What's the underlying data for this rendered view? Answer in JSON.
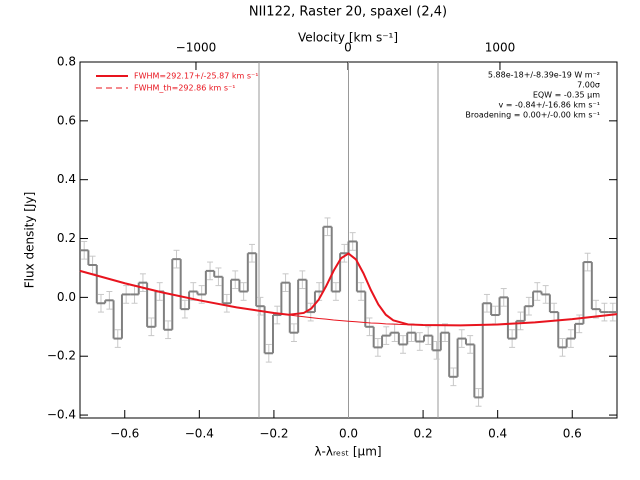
{
  "chart_data": {
    "type": "histogram",
    "title": "NII122, Raster 20, spaxel (2,4)",
    "xlabel": "λ-λᵣₑₛₜ [μm]",
    "ylabel": "Flux density [Jy]",
    "x2label": "Velocity [km s⁻¹]",
    "xlim": [
      -0.72,
      0.72
    ],
    "xticks": [
      {
        "value": -0.6,
        "label": "−0.6"
      },
      {
        "value": -0.4,
        "label": "−0.4"
      },
      {
        "value": -0.2,
        "label": "−0.2"
      },
      {
        "value": 0,
        "label": "0.0"
      },
      {
        "value": 0.2,
        "label": "0.2"
      },
      {
        "value": 0.4,
        "label": "0.4"
      },
      {
        "value": 0.6,
        "label": "0.6"
      }
    ],
    "x2lim": [
      -1763,
      1770
    ],
    "x2ticks": [
      {
        "value": -1000,
        "label": "−1000"
      },
      0,
      1000
    ],
    "ylim": [
      -0.41,
      0.8
    ],
    "yticks": [
      {
        "value": -0.4,
        "label": "−0.4"
      },
      {
        "value": -0.2,
        "label": "−0.2"
      },
      {
        "value": 0,
        "label": "0.0"
      },
      0.2,
      0.4,
      0.6,
      0.8
    ],
    "vlines": [
      -0.24,
      0,
      0.24
    ],
    "vline_color": "#999999",
    "hist_color": "#808080",
    "error_color": "#c8c8c8",
    "bins": [
      -0.72,
      -0.6975,
      -0.675,
      -0.6525,
      -0.63,
      -0.6075,
      -0.585,
      -0.5625,
      -0.54,
      -0.5175,
      -0.495,
      -0.4725,
      -0.45,
      -0.4275,
      -0.405,
      -0.3825,
      -0.36,
      -0.3375,
      -0.315,
      -0.2925,
      -0.27,
      -0.2475,
      -0.225,
      -0.2025,
      -0.18,
      -0.1575,
      -0.135,
      -0.1125,
      -0.09,
      -0.0675,
      -0.045,
      -0.0225,
      0,
      0.0225,
      0.045,
      0.0675,
      0.09,
      0.1125,
      0.135,
      0.1575,
      0.18,
      0.2025,
      0.225,
      0.2475,
      0.27,
      0.2925,
      0.315,
      0.3375,
      0.36,
      0.3825,
      0.405,
      0.4275,
      0.45,
      0.4725,
      0.495,
      0.5175,
      0.54,
      0.5625,
      0.585,
      0.6075,
      0.63,
      0.6525,
      0.675,
      0.6975,
      0.72
    ],
    "values": [
      0.16,
      0.11,
      -0.02,
      -0.01,
      -0.14,
      0.01,
      0.01,
      0.05,
      -0.1,
      0.02,
      -0.11,
      0.13,
      -0.04,
      0.02,
      0.01,
      0.09,
      0.07,
      -0.02,
      0.06,
      0.02,
      0.15,
      -0.03,
      -0.19,
      -0.06,
      0.05,
      -0.12,
      0.06,
      -0.05,
      0.02,
      0.24,
      0.02,
      0.15,
      0.19,
      0.02,
      -0.1,
      -0.17,
      -0.13,
      -0.12,
      -0.16,
      -0.12,
      -0.15,
      -0.13,
      -0.18,
      -0.12,
      -0.27,
      -0.14,
      -0.16,
      -0.34,
      -0.02,
      -0.06,
      0.0,
      -0.14,
      -0.08,
      -0.03,
      0.02,
      0.01,
      -0.05,
      -0.17,
      -0.14,
      -0.09,
      0.12,
      -0.04,
      -0.05,
      -0.05
    ],
    "errors": [
      0.03,
      0.03,
      0.03,
      0.03,
      0.03,
      0.03,
      0.03,
      0.03,
      0.03,
      0.03,
      0.03,
      0.03,
      0.03,
      0.03,
      0.03,
      0.03,
      0.03,
      0.03,
      0.03,
      0.03,
      0.03,
      0.03,
      0.03,
      0.03,
      0.03,
      0.03,
      0.03,
      0.03,
      0.03,
      0.03,
      0.03,
      0.03,
      0.03,
      0.03,
      0.03,
      0.03,
      0.03,
      0.03,
      0.03,
      0.03,
      0.03,
      0.03,
      0.03,
      0.03,
      0.03,
      0.03,
      0.03,
      0.03,
      0.03,
      0.03,
      0.03,
      0.03,
      0.03,
      0.03,
      0.03,
      0.03,
      0.03,
      0.03,
      0.03,
      0.03,
      0.03,
      0.03,
      0.03,
      0.03
    ],
    "series": [
      {
        "color": "#e8141e",
        "width": 1,
        "x": [
          -0.72,
          -0.6,
          -0.5,
          -0.4,
          -0.3,
          -0.2,
          -0.16,
          -0.12,
          -0.1,
          -0.08,
          -0.06,
          -0.04,
          -0.02,
          0,
          0.02,
          0.04,
          0.06,
          0.08,
          0.1,
          0.12,
          0.16,
          0.2,
          0.3,
          0.4,
          0.5,
          0.6,
          0.72
        ],
        "values": [
          0.09,
          0.048,
          0.017,
          -0.01,
          -0.034,
          -0.053,
          -0.06,
          -0.066,
          -0.069,
          -0.072,
          -0.074,
          -0.077,
          -0.079,
          -0.081,
          -0.083,
          -0.085,
          -0.087,
          -0.088,
          -0.09,
          -0.091,
          -0.093,
          -0.094,
          -0.095,
          -0.092,
          -0.085,
          -0.074,
          -0.057
        ]
      },
      {
        "color": "#e8141e",
        "width": 2,
        "x": [
          -0.72,
          -0.6,
          -0.5,
          -0.4,
          -0.3,
          -0.2,
          -0.16,
          -0.12,
          -0.1,
          -0.08,
          -0.06,
          -0.04,
          -0.02,
          0,
          0.02,
          0.04,
          0.06,
          0.08,
          0.1,
          0.12,
          0.16,
          0.2,
          0.3,
          0.4,
          0.5,
          0.6,
          0.72
        ],
        "values": [
          0.09,
          0.048,
          0.017,
          -0.01,
          -0.034,
          -0.053,
          -0.059,
          -0.053,
          -0.038,
          -0.008,
          0.038,
          0.09,
          0.133,
          0.149,
          0.129,
          0.082,
          0.025,
          -0.024,
          -0.059,
          -0.078,
          -0.092,
          -0.094,
          -0.095,
          -0.092,
          -0.085,
          -0.074,
          -0.057
        ]
      }
    ],
    "legend": [
      {
        "label": "FWHM=292.17+/-25.87 km s⁻¹",
        "color": "#e8141e",
        "dash": false
      },
      {
        "label": "FWHM_th=292.86 km s⁻¹",
        "color": "#e8141e",
        "dash": true
      }
    ],
    "annotations": [
      "5.88e-18+/-8.39e-19 W m⁻²",
      "7.00σ",
      "EQW = -0.35 μm",
      "v = -0.84+/-16.86 km s⁻¹",
      "Broadening = 0.00+/-0.00 km s⁻¹"
    ]
  }
}
